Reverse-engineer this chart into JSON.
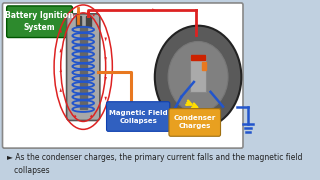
{
  "bg_color": "#c0d0e0",
  "panel_bg": "#ffffff",
  "panel_border": "#888888",
  "title_box_color": "#2d8a2d",
  "title_text": "Battery Ignition\nSystem",
  "title_text_color": "#ffffff",
  "label_magnetic": "Magnetic Field\nCollapses",
  "label_magnetic_bg": "#3060c0",
  "label_condenser": "Condenser\nCharges",
  "label_condenser_bg": "#e8a020",
  "caption": "► As the condenser charges, the primary current falls and the magnetic field\n   collapses",
  "caption_color": "#222222",
  "arrow_red": "#dd2222",
  "arrow_orange": "#e87820",
  "wire_blue": "#2255cc",
  "wire_yellow": "#ffdd00",
  "coil_body_color": "#a8a8a8",
  "coil_dark": "#666666",
  "dist_outer": "#5a5a5a",
  "dist_inner": "#888888",
  "dist_rotor": "#999999"
}
